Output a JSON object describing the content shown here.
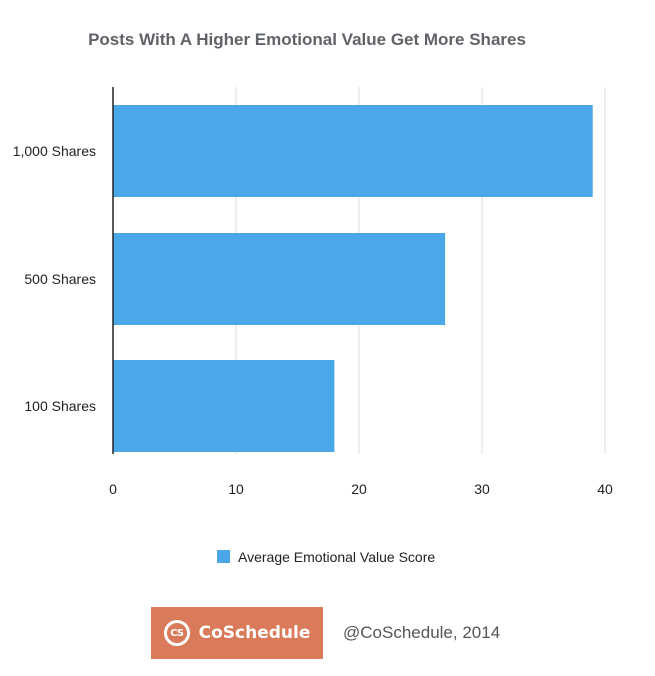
{
  "colors": {
    "bar": "#4aa8e8",
    "grid": "#dddddd",
    "axis": "#222222",
    "logo_bg": "#d97b5b"
  },
  "chart_data": {
    "type": "bar",
    "orientation": "horizontal",
    "title": "Posts With A Higher Emotional Value Get More Shares",
    "categories": [
      "1,000 Shares",
      "500 Shares",
      "100 Shares"
    ],
    "series": [
      {
        "name": "Average Emotional Value Score",
        "values": [
          39,
          27,
          18
        ]
      }
    ],
    "xticks": [
      "0",
      "10",
      "20",
      "30",
      "40"
    ],
    "xlim": [
      0,
      40
    ],
    "grid": true,
    "legend_position": "bottom"
  },
  "footer": {
    "logo_mark": "CS",
    "logo_text": "CoSchedule",
    "credit": "@CoSchedule, 2014"
  }
}
